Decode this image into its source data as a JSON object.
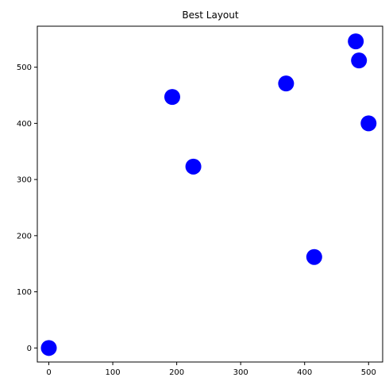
{
  "chart_data": {
    "type": "scatter",
    "title": "Best Layout",
    "xlabel": "",
    "ylabel": "",
    "x": [
      0,
      193,
      226,
      371,
      415,
      480,
      485,
      500
    ],
    "y": [
      0,
      447,
      323,
      471,
      162,
      546,
      512,
      400
    ],
    "xlim": [
      -18,
      522
    ],
    "ylim": [
      -25,
      573
    ],
    "xticks": [
      0,
      100,
      200,
      300,
      400,
      500
    ],
    "yticks": [
      0,
      100,
      200,
      300,
      400,
      500
    ],
    "marker_color": "#0000ff",
    "grid": false,
    "legend": "none"
  }
}
